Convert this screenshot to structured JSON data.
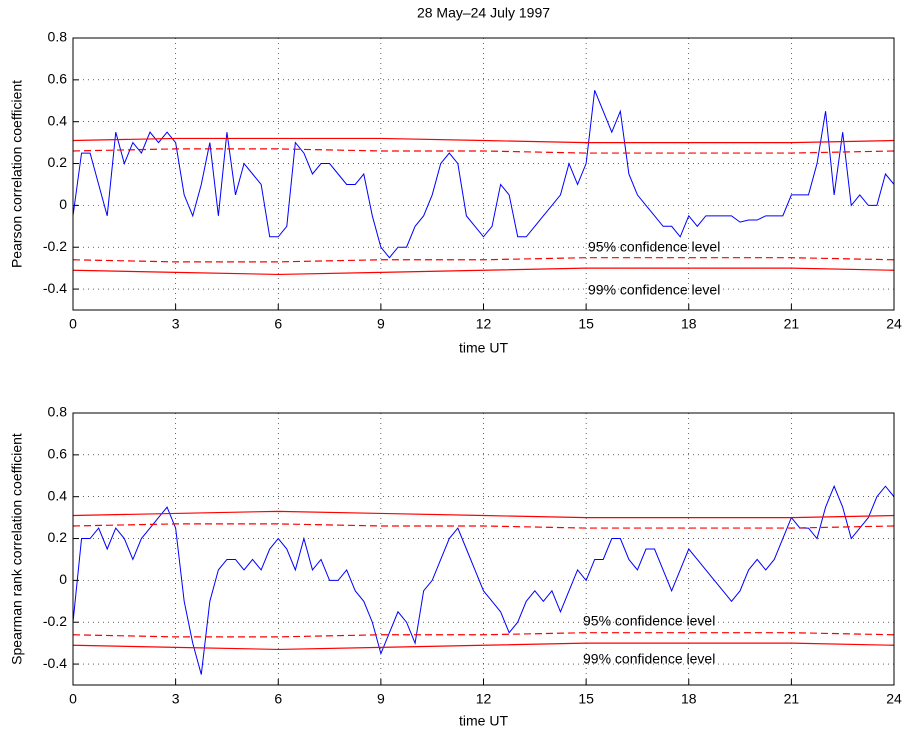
{
  "chart_data": [
    {
      "type": "line",
      "title": "28 May–24 July 1997",
      "xlabel": "time UT",
      "ylabel": "Pearson correlation coefficient",
      "xlim": [
        0,
        24
      ],
      "ylim": [
        -0.5,
        0.8
      ],
      "xticks": [
        0,
        3,
        6,
        9,
        12,
        15,
        18,
        21,
        24
      ],
      "yticks": [
        -0.4,
        -0.2,
        0,
        0.2,
        0.4,
        0.6,
        0.8
      ],
      "grid": true,
      "annotations": [
        "95% confidence level",
        "99% confidence level"
      ],
      "x": [
        0,
        0.25,
        0.5,
        0.75,
        1,
        1.25,
        1.5,
        1.75,
        2,
        2.25,
        2.5,
        2.75,
        3,
        3.25,
        3.5,
        3.75,
        4,
        4.25,
        4.5,
        4.75,
        5,
        5.25,
        5.5,
        5.75,
        6,
        6.25,
        6.5,
        6.75,
        7,
        7.25,
        7.5,
        7.75,
        8,
        8.25,
        8.5,
        8.75,
        9,
        9.25,
        9.5,
        9.75,
        10,
        10.25,
        10.5,
        10.75,
        11,
        11.25,
        11.5,
        11.75,
        12,
        12.25,
        12.5,
        12.75,
        13,
        13.25,
        13.5,
        13.75,
        14,
        14.25,
        14.5,
        14.75,
        15,
        15.25,
        15.5,
        15.75,
        16,
        16.25,
        16.5,
        16.75,
        17,
        17.25,
        17.5,
        17.75,
        18,
        18.25,
        18.5,
        18.75,
        19,
        19.25,
        19.5,
        19.75,
        20,
        20.25,
        20.5,
        20.75,
        21,
        21.25,
        21.5,
        21.75,
        22,
        22.25,
        22.5,
        22.75,
        23,
        23.25,
        23.5,
        23.75,
        24
      ],
      "series": [
        {
          "color": "#0000ff",
          "values": [
            -0.05,
            0.25,
            0.25,
            0.1,
            -0.05,
            0.35,
            0.2,
            0.3,
            0.25,
            0.35,
            0.3,
            0.35,
            0.3,
            0.05,
            -0.05,
            0.1,
            0.3,
            -0.05,
            0.35,
            0.05,
            0.2,
            0.15,
            0.1,
            -0.15,
            -0.15,
            -0.1,
            0.3,
            0.25,
            0.15,
            0.2,
            0.2,
            0.15,
            0.1,
            0.1,
            0.15,
            -0.05,
            -0.2,
            -0.25,
            -0.2,
            -0.2,
            -0.1,
            -0.05,
            0.05,
            0.2,
            0.25,
            0.2,
            -0.05,
            -0.1,
            -0.15,
            -0.1,
            0.1,
            0.05,
            -0.15,
            -0.15,
            -0.1,
            -0.05,
            0,
            0.05,
            0.2,
            0.1,
            0.2,
            0.55,
            0.45,
            0.35,
            0.45,
            0.15,
            0.05,
            0,
            -0.05,
            -0.1,
            -0.1,
            -0.15,
            -0.05,
            -0.1,
            -0.05,
            -0.05,
            -0.05,
            -0.05,
            -0.08,
            -0.07,
            -0.07,
            -0.05,
            -0.05,
            -0.05,
            0.05,
            0.05,
            0.05,
            0.2,
            0.45,
            0.05,
            0.35,
            0,
            0.05,
            0,
            0,
            0.15,
            0.1
          ]
        },
        {
          "color": "#ff0000",
          "dashed": false,
          "x": [
            0,
            3,
            6,
            9,
            12,
            15,
            18,
            21,
            24
          ],
          "values": [
            0.31,
            0.32,
            0.32,
            0.32,
            0.31,
            0.3,
            0.3,
            0.3,
            0.31
          ]
        },
        {
          "color": "#ff0000",
          "dashed": true,
          "x": [
            0,
            3,
            6,
            9,
            12,
            15,
            18,
            21,
            24
          ],
          "values": [
            0.26,
            0.27,
            0.27,
            0.26,
            0.26,
            0.25,
            0.25,
            0.25,
            0.26
          ]
        },
        {
          "color": "#ff0000",
          "dashed": true,
          "x": [
            0,
            3,
            6,
            9,
            12,
            15,
            18,
            21,
            24
          ],
          "values": [
            -0.26,
            -0.27,
            -0.27,
            -0.26,
            -0.26,
            -0.25,
            -0.25,
            -0.25,
            -0.26
          ]
        },
        {
          "color": "#ff0000",
          "dashed": false,
          "x": [
            0,
            3,
            6,
            9,
            12,
            15,
            18,
            21,
            24
          ],
          "values": [
            -0.31,
            -0.32,
            -0.33,
            -0.32,
            -0.31,
            -0.3,
            -0.3,
            -0.3,
            -0.31
          ]
        }
      ]
    },
    {
      "type": "line",
      "xlabel": "time UT",
      "ylabel": "Spearman rank correlation coefficient",
      "xlim": [
        0,
        24
      ],
      "ylim": [
        -0.5,
        0.8
      ],
      "xticks": [
        0,
        3,
        6,
        9,
        12,
        15,
        18,
        21,
        24
      ],
      "yticks": [
        -0.4,
        -0.2,
        0,
        0.2,
        0.4,
        0.6,
        0.8
      ],
      "grid": true,
      "annotations": [
        "95% confidence level",
        "99% confidence level"
      ],
      "x": [
        0,
        0.25,
        0.5,
        0.75,
        1,
        1.25,
        1.5,
        1.75,
        2,
        2.25,
        2.5,
        2.75,
        3,
        3.25,
        3.5,
        3.75,
        4,
        4.25,
        4.5,
        4.75,
        5,
        5.25,
        5.5,
        5.75,
        6,
        6.25,
        6.5,
        6.75,
        7,
        7.25,
        7.5,
        7.75,
        8,
        8.25,
        8.5,
        8.75,
        9,
        9.25,
        9.5,
        9.75,
        10,
        10.25,
        10.5,
        10.75,
        11,
        11.25,
        11.5,
        11.75,
        12,
        12.25,
        12.5,
        12.75,
        13,
        13.25,
        13.5,
        13.75,
        14,
        14.25,
        14.5,
        14.75,
        15,
        15.25,
        15.5,
        15.75,
        16,
        16.25,
        16.5,
        16.75,
        17,
        17.25,
        17.5,
        17.75,
        18,
        18.25,
        18.5,
        18.75,
        19,
        19.25,
        19.5,
        19.75,
        20,
        20.25,
        20.5,
        20.75,
        21,
        21.25,
        21.5,
        21.75,
        22,
        22.25,
        22.5,
        22.75,
        23,
        23.25,
        23.5,
        23.75,
        24
      ],
      "series": [
        {
          "color": "#0000ff",
          "values": [
            -0.2,
            0.2,
            0.2,
            0.25,
            0.15,
            0.25,
            0.2,
            0.1,
            0.2,
            0.25,
            0.3,
            0.35,
            0.25,
            -0.1,
            -0.3,
            -0.45,
            -0.1,
            0.05,
            0.1,
            0.1,
            0.05,
            0.1,
            0.05,
            0.15,
            0.2,
            0.15,
            0.05,
            0.2,
            0.05,
            0.1,
            0,
            0,
            0.05,
            -0.05,
            -0.1,
            -0.2,
            -0.35,
            -0.25,
            -0.15,
            -0.2,
            -0.3,
            -0.05,
            0,
            0.1,
            0.2,
            0.25,
            0.15,
            0.05,
            -0.05,
            -0.1,
            -0.15,
            -0.25,
            -0.2,
            -0.1,
            -0.05,
            -0.1,
            -0.05,
            -0.15,
            -0.05,
            0.05,
            0,
            0.1,
            0.1,
            0.2,
            0.2,
            0.1,
            0.05,
            0.15,
            0.15,
            0.05,
            -0.05,
            0.05,
            0.15,
            0.1,
            0.05,
            0,
            -0.05,
            -0.1,
            -0.05,
            0.05,
            0.1,
            0.05,
            0.1,
            0.2,
            0.3,
            0.25,
            0.25,
            0.2,
            0.35,
            0.45,
            0.35,
            0.2,
            0.25,
            0.3,
            0.4,
            0.45,
            0.4
          ]
        },
        {
          "color": "#ff0000",
          "dashed": false,
          "x": [
            0,
            3,
            6,
            9,
            12,
            15,
            18,
            21,
            24
          ],
          "values": [
            0.31,
            0.32,
            0.33,
            0.32,
            0.31,
            0.3,
            0.3,
            0.3,
            0.31
          ]
        },
        {
          "color": "#ff0000",
          "dashed": true,
          "x": [
            0,
            3,
            6,
            9,
            12,
            15,
            18,
            21,
            24
          ],
          "values": [
            0.26,
            0.27,
            0.27,
            0.26,
            0.26,
            0.25,
            0.25,
            0.25,
            0.26
          ]
        },
        {
          "color": "#ff0000",
          "dashed": true,
          "x": [
            0,
            3,
            6,
            9,
            12,
            15,
            18,
            21,
            24
          ],
          "values": [
            -0.26,
            -0.27,
            -0.27,
            -0.26,
            -0.26,
            -0.25,
            -0.25,
            -0.25,
            -0.26
          ]
        },
        {
          "color": "#ff0000",
          "dashed": false,
          "x": [
            0,
            3,
            6,
            9,
            12,
            15,
            18,
            21,
            24
          ],
          "values": [
            -0.31,
            -0.32,
            -0.33,
            -0.32,
            -0.31,
            -0.3,
            -0.3,
            -0.3,
            -0.31
          ]
        }
      ]
    }
  ]
}
